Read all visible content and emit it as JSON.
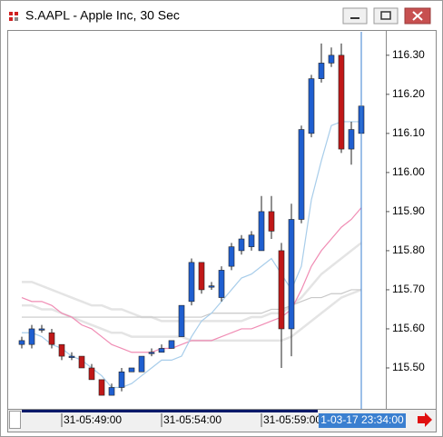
{
  "chart_data": {
    "type": "candlestick",
    "title": "S.AAPL - Apple Inc, 30 Sec",
    "categories": [
      null,
      null,
      null,
      null,
      "31-05:49:00",
      null,
      null,
      null,
      null,
      null,
      null,
      null,
      null,
      null,
      "31-05:54:00",
      null,
      null,
      null,
      null,
      null,
      null,
      null,
      null,
      null,
      "31-05:59:00",
      null,
      null,
      null,
      null,
      null,
      null,
      null,
      null,
      null,
      null
    ],
    "crosshair_label": "1-03-17 23:34:00",
    "open": [
      115.56,
      115.56,
      115.6,
      115.59,
      115.56,
      115.53,
      115.53,
      115.5,
      115.47,
      115.43,
      115.45,
      115.49,
      115.49,
      115.54,
      115.54,
      115.55,
      115.58,
      115.67,
      115.77,
      115.71,
      115.68,
      115.76,
      115.8,
      115.81,
      115.8,
      115.9,
      115.8,
      115.6,
      115.88,
      116.1,
      116.24,
      116.28,
      116.3,
      116.06,
      116.1
    ],
    "high": [
      115.58,
      115.61,
      115.61,
      115.6,
      115.56,
      115.54,
      115.53,
      115.51,
      115.47,
      115.46,
      115.5,
      115.5,
      115.53,
      115.55,
      115.56,
      115.57,
      115.66,
      115.78,
      115.77,
      115.72,
      115.76,
      115.82,
      115.84,
      115.85,
      115.94,
      115.94,
      115.82,
      115.92,
      116.12,
      116.25,
      116.33,
      116.32,
      116.33,
      116.13,
      116.24
    ],
    "low": [
      115.55,
      115.55,
      115.59,
      115.55,
      115.52,
      115.52,
      115.5,
      115.47,
      115.43,
      115.43,
      115.44,
      115.49,
      115.49,
      115.53,
      115.54,
      115.55,
      115.58,
      115.66,
      115.69,
      115.7,
      115.67,
      115.75,
      115.79,
      115.8,
      115.8,
      115.83,
      115.5,
      115.53,
      115.87,
      116.09,
      116.23,
      116.27,
      116.05,
      116.02,
      116.04
    ],
    "close": [
      115.57,
      115.6,
      115.6,
      115.56,
      115.53,
      115.53,
      115.5,
      115.47,
      115.43,
      115.45,
      115.49,
      115.5,
      115.53,
      115.54,
      115.55,
      115.57,
      115.66,
      115.77,
      115.7,
      115.71,
      115.75,
      115.81,
      115.83,
      115.84,
      115.9,
      115.85,
      115.6,
      115.88,
      116.11,
      116.24,
      116.28,
      116.3,
      116.06,
      116.11,
      116.17
    ],
    "up_color": "#1f5fd0",
    "down_color": "#c01818",
    "overlays": [
      {
        "color": "#e4e4e4",
        "values": [
          115.72,
          115.72,
          115.71,
          115.7,
          115.69,
          115.68,
          115.67,
          115.66,
          115.66,
          115.65,
          115.65,
          115.64,
          115.63,
          115.63,
          115.62,
          115.62,
          115.62,
          115.62,
          115.62,
          115.62,
          115.62,
          115.62,
          115.62,
          115.63,
          115.63,
          115.64,
          115.64,
          115.66,
          115.68,
          115.71,
          115.74,
          115.76,
          115.78,
          115.8,
          115.82
        ]
      },
      {
        "color": "#e4e4e4",
        "values": [
          115.66,
          115.66,
          115.65,
          115.65,
          115.64,
          115.63,
          115.62,
          115.61,
          115.6,
          115.59,
          115.59,
          115.58,
          115.58,
          115.58,
          115.58,
          115.58,
          115.58,
          115.57,
          115.57,
          115.57,
          115.57,
          115.57,
          115.57,
          115.57,
          115.57,
          115.57,
          115.57,
          115.58,
          115.6,
          115.62,
          115.64,
          115.66,
          115.68,
          115.69,
          115.7
        ]
      },
      {
        "color": "#c8c8c8",
        "values": [
          115.63,
          115.63,
          115.63,
          115.63,
          115.63,
          115.63,
          115.63,
          115.63,
          115.63,
          115.63,
          115.63,
          115.63,
          115.63,
          115.63,
          115.63,
          115.63,
          115.63,
          115.63,
          115.63,
          115.64,
          115.64,
          115.64,
          115.64,
          115.64,
          115.64,
          115.65,
          115.65,
          115.66,
          115.67,
          115.68,
          115.68,
          115.69,
          115.69,
          115.7,
          115.7
        ]
      },
      {
        "color": "#f08cb4",
        "values": [
          115.68,
          115.67,
          115.67,
          115.66,
          115.64,
          115.63,
          115.61,
          115.6,
          115.58,
          115.56,
          115.55,
          115.54,
          115.54,
          115.54,
          115.55,
          115.55,
          115.56,
          115.57,
          115.57,
          115.57,
          115.58,
          115.59,
          115.6,
          115.6,
          115.61,
          115.62,
          115.63,
          115.65,
          115.7,
          115.76,
          115.8,
          115.83,
          115.86,
          115.88,
          115.91
        ]
      },
      {
        "color": "#a8cdea",
        "values": [
          115.59,
          115.59,
          115.58,
          115.56,
          115.55,
          115.53,
          115.52,
          115.5,
          115.48,
          115.45,
          115.45,
          115.46,
          115.48,
          115.5,
          115.52,
          115.52,
          115.53,
          115.58,
          115.62,
          115.64,
          115.67,
          115.7,
          115.73,
          115.74,
          115.76,
          115.78,
          115.74,
          115.7,
          115.76,
          115.93,
          116.03,
          116.12,
          116.13,
          116.13,
          116.13
        ]
      }
    ],
    "ylim": [
      115.4,
      116.36
    ],
    "yticks": [
      {
        "value": 115.5,
        "label": "115.50"
      },
      {
        "value": 115.6,
        "label": "115.60"
      },
      {
        "value": 115.7,
        "label": "115.70"
      },
      {
        "value": 115.8,
        "label": "115.80"
      },
      {
        "value": 115.9,
        "label": "115.90"
      },
      {
        "value": 116.0,
        "label": "116.00"
      },
      {
        "value": 116.1,
        "label": "116.10"
      },
      {
        "value": 116.2,
        "label": "116.20"
      },
      {
        "value": 116.3,
        "label": "116.30"
      }
    ]
  }
}
